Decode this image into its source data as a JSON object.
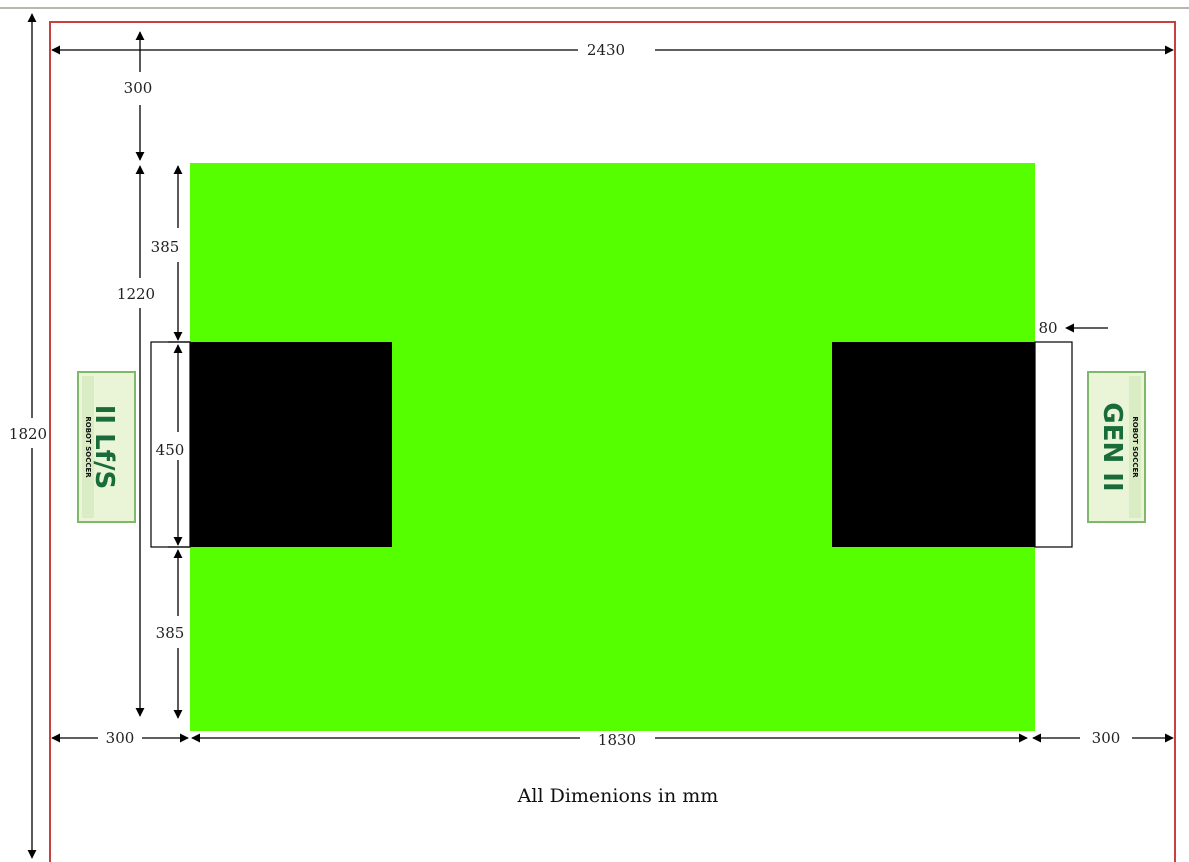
{
  "diagram": {
    "dimensions": {
      "total_width": "2430",
      "top_margin": "300",
      "field_height": "1220",
      "total_height": "1820",
      "upper_gap": "385",
      "goal_width": "450",
      "lower_gap": "385",
      "goal_depth": "80",
      "left_margin": "300",
      "field_width": "1830",
      "right_margin": "300"
    },
    "caption": "All Dimenions in mm",
    "logo_left": {
      "big_text": "II Lf/S",
      "small_text": "ROBOT SOCCER"
    },
    "logo_right": {
      "big_text": "GEN II",
      "small_text": "ROBOT SOCCER"
    },
    "colors": {
      "field": "#55ff00",
      "goal_area": "#000000",
      "border": "#c84040",
      "logo_bg": "#2d8a4e"
    }
  }
}
